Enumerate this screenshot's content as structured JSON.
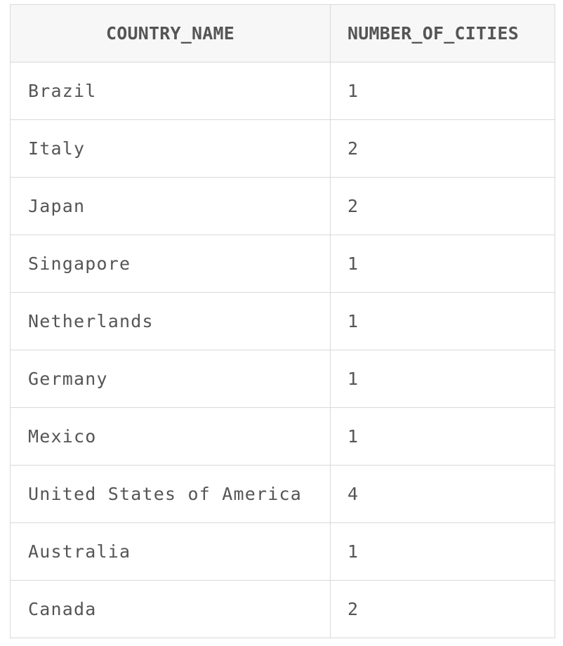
{
  "table": {
    "headers": [
      "COUNTRY_NAME",
      "NUMBER_OF_CITIES"
    ],
    "rows": [
      [
        "Brazil",
        "1"
      ],
      [
        "Italy",
        "2"
      ],
      [
        "Japan",
        "2"
      ],
      [
        "Singapore",
        "1"
      ],
      [
        "Netherlands",
        "1"
      ],
      [
        "Germany",
        "1"
      ],
      [
        "Mexico",
        "1"
      ],
      [
        "United States of America",
        "4"
      ],
      [
        "Australia",
        "1"
      ],
      [
        "Canada",
        "2"
      ]
    ]
  }
}
